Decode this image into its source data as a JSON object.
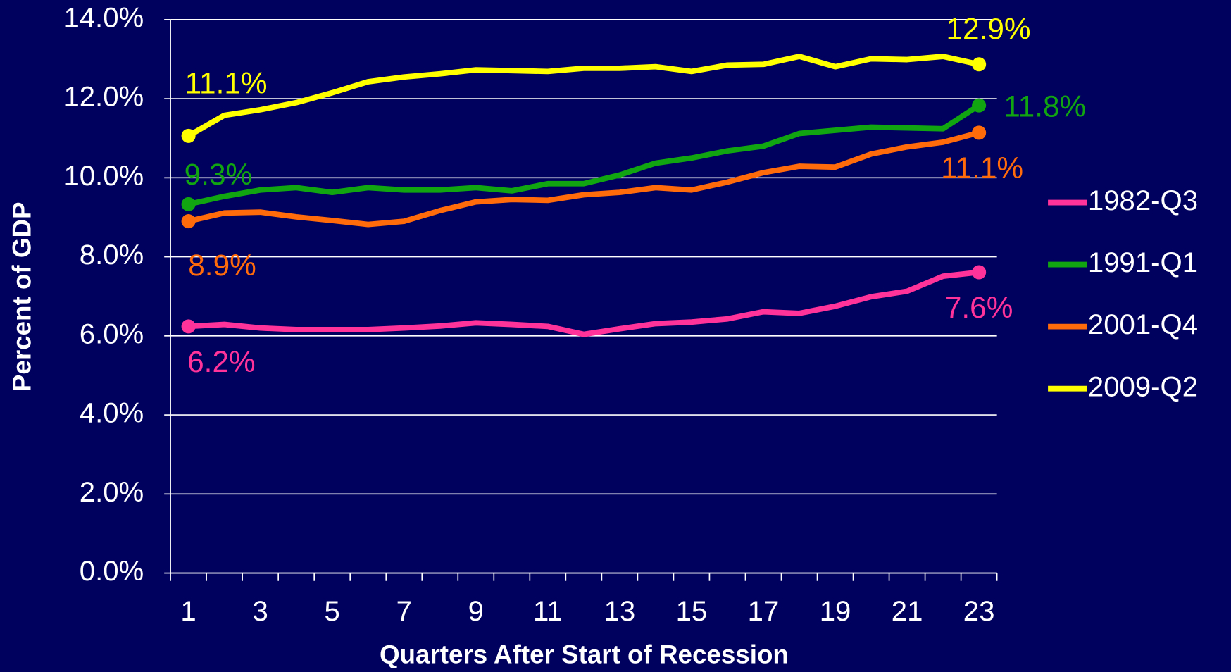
{
  "chart_data": {
    "type": "line",
    "x_axis_label": "Quarters After Start of Recession",
    "y_axis_label": "Percent of GDP",
    "categories": [
      "1",
      null,
      "3",
      null,
      "5",
      null,
      "7",
      null,
      "9",
      null,
      "11",
      null,
      "13",
      null,
      "15",
      null,
      "17",
      null,
      "19",
      null,
      "21",
      null,
      "23"
    ],
    "ylim": [
      0,
      14
    ],
    "yticks": [
      {
        "value": 0,
        "label": "0.0%"
      },
      {
        "value": 2,
        "label": "2.0%"
      },
      {
        "value": 4,
        "label": "4.0%"
      },
      {
        "value": 6,
        "label": "6.0%"
      },
      {
        "value": 8,
        "label": "8.0%"
      },
      {
        "value": 10,
        "label": "10.0%"
      },
      {
        "value": 12,
        "label": "12.0%"
      },
      {
        "value": 14,
        "label": "14.0%"
      }
    ],
    "grid": true,
    "legend": "right",
    "series": [
      {
        "name": "1982-Q3",
        "color": "#ff3399",
        "values": [
          6.24,
          6.29,
          6.2,
          6.16,
          6.16,
          6.16,
          6.2,
          6.25,
          6.33,
          6.29,
          6.24,
          6.04,
          6.18,
          6.31,
          6.35,
          6.43,
          6.61,
          6.57,
          6.75,
          6.99,
          7.13,
          7.51,
          7.61
        ],
        "value_labels": [
          "6.2%",
          null,
          null,
          null,
          null,
          null,
          null,
          null,
          null,
          null,
          null,
          null,
          null,
          null,
          null,
          null,
          null,
          null,
          null,
          null,
          null,
          null,
          "7.6%"
        ]
      },
      {
        "name": "1991-Q1",
        "color": "#11a611",
        "values": [
          9.33,
          9.53,
          9.69,
          9.75,
          9.63,
          9.75,
          9.69,
          9.69,
          9.75,
          9.67,
          9.85,
          9.85,
          10.07,
          10.37,
          10.5,
          10.68,
          10.8,
          11.12,
          11.2,
          11.28,
          11.26,
          11.24,
          11.83
        ],
        "value_labels": [
          "9.3%",
          null,
          null,
          null,
          null,
          null,
          null,
          null,
          null,
          null,
          null,
          null,
          null,
          null,
          null,
          null,
          null,
          null,
          null,
          null,
          null,
          null,
          "11.8%"
        ]
      },
      {
        "name": "2001-Q4",
        "color": "#ff6a0a",
        "values": [
          8.9,
          9.11,
          9.13,
          9.01,
          8.92,
          8.82,
          8.9,
          9.17,
          9.39,
          9.45,
          9.43,
          9.57,
          9.63,
          9.75,
          9.69,
          9.89,
          10.13,
          10.29,
          10.27,
          10.6,
          10.78,
          10.9,
          11.14
        ],
        "value_labels": [
          "8.9%",
          null,
          null,
          null,
          null,
          null,
          null,
          null,
          null,
          null,
          null,
          null,
          null,
          null,
          null,
          null,
          null,
          null,
          null,
          null,
          null,
          null,
          "11.1%"
        ]
      },
      {
        "name": "2009-Q2",
        "color": "#ffff00",
        "values": [
          11.06,
          11.58,
          11.72,
          11.9,
          12.15,
          12.43,
          12.55,
          12.63,
          12.73,
          12.71,
          12.69,
          12.77,
          12.77,
          12.81,
          12.69,
          12.85,
          12.87,
          13.07,
          12.81,
          13.01,
          12.99,
          13.07,
          12.87
        ],
        "value_labels": [
          "11.1%",
          null,
          null,
          null,
          null,
          null,
          null,
          null,
          null,
          null,
          null,
          null,
          null,
          null,
          null,
          null,
          null,
          null,
          null,
          null,
          null,
          null,
          "12.9%"
        ]
      }
    ]
  }
}
